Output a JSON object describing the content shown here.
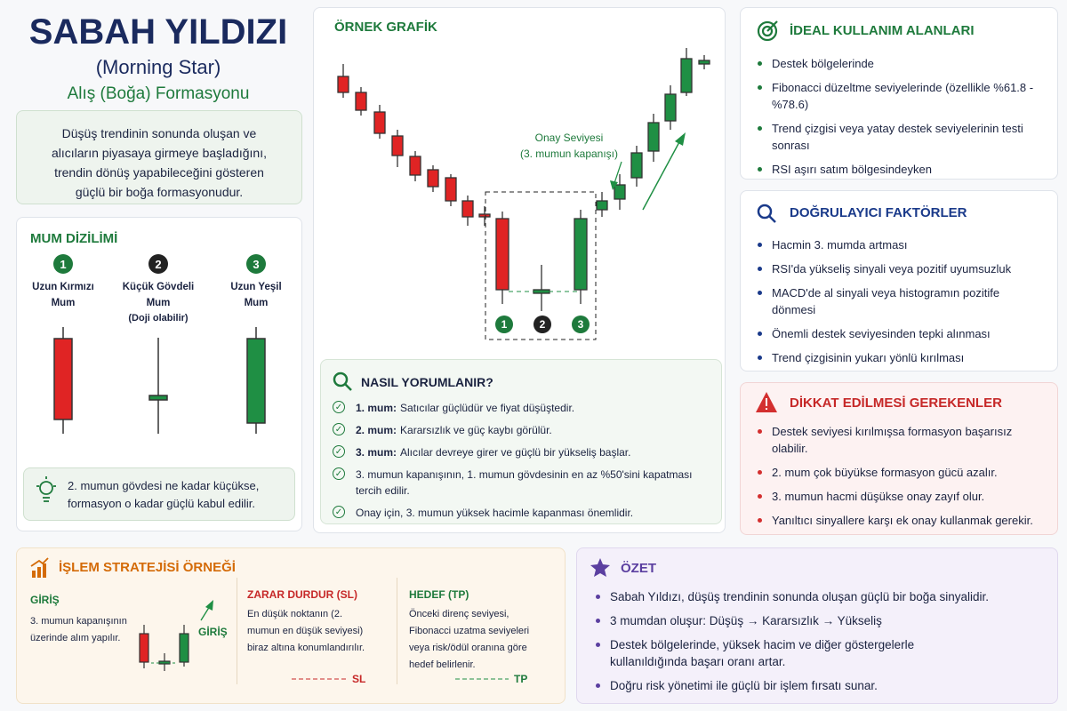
{
  "header": {
    "title": "SABAH YILDIZI",
    "subtitle": "(Morning Star)",
    "tagline": "Alış (Boğa) Formasyonu"
  },
  "intro": {
    "text": "Düşüş trendinin sonunda oluşan ve alıcıların piyasaya girmeye başladığını, trendin dönüş yapabileceğini gösteren güçlü bir boğa formasyonudur."
  },
  "sequence": {
    "title": "MUM DİZİLİMİ",
    "items": [
      {
        "number": "1",
        "label": "Uzun Kırmızı Mum"
      },
      {
        "number": "2",
        "label": "Küçük Gövdeli Mum",
        "note": "(Doji olabilir)"
      },
      {
        "number": "3",
        "label": "Uzun Yeşil Mum"
      }
    ],
    "tip": "2. mumun gövdesi ne kadar küçükse, formasyon o kadar güçlü kabul edilir."
  },
  "example": {
    "title": "ÖRNEK GRAFİK",
    "annotation": "Onay Seviyesi",
    "annotation_note": "(3. mumun kapanışı)"
  },
  "interpret": {
    "title": "NASIL YORUMLANIR?",
    "items": [
      {
        "bold": "1. mum:",
        "text": "Satıcılar güçlüdür ve fiyat düşüştedir."
      },
      {
        "bold": "2. mum:",
        "text": "Kararsızlık ve güç kaybı görülür."
      },
      {
        "bold": "3. mum:",
        "text": "Alıcılar devreye girer ve güçlü bir yükseliş başlar."
      },
      {
        "text": "3. mumun kapanışının, 1. mumun gövdesinin en az %50'sini kapatması tercih edilir."
      },
      {
        "text": "Onay için, 3. mumun yüksek hacimle kapanması önemlidir."
      }
    ]
  },
  "ideal": {
    "title": "İDEAL KULLANIM ALANLARI",
    "items": [
      "Destek bölgelerinde",
      "Fibonacci düzeltme seviyelerinde (özellikle %61.8 - %78.6)",
      "Trend çizgisi veya yatay destek seviyelerinin testi sonrası",
      "RSI aşırı satım bölgesindeyken"
    ]
  },
  "confirm": {
    "title": "DOĞRULAYICI FAKTÖRLER",
    "items": [
      "Hacmin 3. mumda artması",
      "RSI'da yükseliş sinyali veya pozitif uyumsuzluk",
      "MACD'de al sinyali veya histogramın pozitife dönmesi",
      "Önemli destek seviyesinden tepki alınması",
      "Trend çizgisinin yukarı yönlü kırılması"
    ]
  },
  "caution": {
    "title": "DİKKAT EDİLMESİ GEREKENLER",
    "items": [
      "Destek seviyesi kırılmışsa formasyon başarısız olabilir.",
      "2. mum çok büyükse formasyon gücü azalır.",
      "3. mumun hacmi düşükse onay zayıf olur.",
      "Yanıltıcı sinyallere karşı ek onay kullanmak gerekir."
    ]
  },
  "strategy": {
    "title": "İŞLEM STRATEJİSİ ÖRNEĞİ",
    "entry": {
      "title": "GİRİŞ",
      "text": "3. mumun kapanışının üzerinde alım yapılır.",
      "marker": "GİRİŞ"
    },
    "stop": {
      "title": "ZARAR DURDUR (SL)",
      "text": "En düşük noktanın (2. mumun en düşük seviyesi) biraz altına konumlandırılır.",
      "tag": "SL"
    },
    "target": {
      "title": "HEDEF (TP)",
      "text": "Önceki direnç seviyesi, Fibonacci uzatma seviyeleri veya risk/ödül oranına göre hedef belirlenir.",
      "tag": "TP"
    }
  },
  "summary": {
    "title": "ÖZET",
    "items": [
      "Sabah Yıldızı, düşüş trendinin sonunda oluşan güçlü bir boğa sinyalidir.",
      "3 mumdan oluşur: Düşüş → Kararsızlık → Yükseliş",
      "Destek bölgelerinde, yüksek hacim ve diğer göstergelerle kullanıldığında başarı oranı artar.",
      "Doğru risk yönetimi ile güçlü bir işlem fırsatı sunar."
    ]
  }
}
